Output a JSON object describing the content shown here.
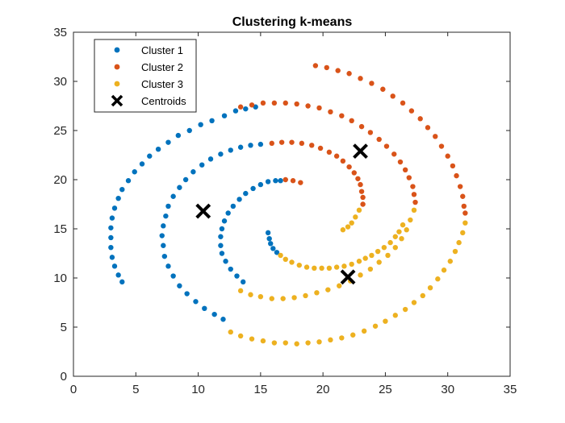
{
  "chart_data": {
    "type": "scatter",
    "title": "Clustering k-means",
    "xlabel": "",
    "ylabel": "",
    "xlim": [
      0,
      35
    ],
    "ylim": [
      0,
      35
    ],
    "xticks": [
      0,
      5,
      10,
      15,
      20,
      25,
      30,
      35
    ],
    "yticks": [
      0,
      5,
      10,
      15,
      20,
      25,
      30,
      35
    ],
    "grid": false,
    "legend_position": "top-left",
    "series": [
      {
        "name": "Cluster 1",
        "color": "#0072BD",
        "marker": "dot",
        "points": [
          [
            3.9,
            9.6
          ],
          [
            3.6,
            10.3
          ],
          [
            3.3,
            11.2
          ],
          [
            3.1,
            12.1
          ],
          [
            3.0,
            13.1
          ],
          [
            3.0,
            14.1
          ],
          [
            3.0,
            15.1
          ],
          [
            3.1,
            16.1
          ],
          [
            3.3,
            17.1
          ],
          [
            3.6,
            18.1
          ],
          [
            3.9,
            19.0
          ],
          [
            4.4,
            19.9
          ],
          [
            4.9,
            20.8
          ],
          [
            5.5,
            21.6
          ],
          [
            6.1,
            22.4
          ],
          [
            6.8,
            23.1
          ],
          [
            7.6,
            23.8
          ],
          [
            8.4,
            24.5
          ],
          [
            9.3,
            25.0
          ],
          [
            10.2,
            25.6
          ],
          [
            11.1,
            26.0
          ],
          [
            12.1,
            26.5
          ],
          [
            13.0,
            27.0
          ],
          [
            13.8,
            27.2
          ],
          [
            14.6,
            27.4
          ],
          [
            12.0,
            5.8
          ],
          [
            11.3,
            6.3
          ],
          [
            10.5,
            6.9
          ],
          [
            9.8,
            7.6
          ],
          [
            9.1,
            8.4
          ],
          [
            8.5,
            9.2
          ],
          [
            8.0,
            10.2
          ],
          [
            7.6,
            11.2
          ],
          [
            7.3,
            12.2
          ],
          [
            7.2,
            13.3
          ],
          [
            7.1,
            14.3
          ],
          [
            7.2,
            15.3
          ],
          [
            7.4,
            16.3
          ],
          [
            7.6,
            17.3
          ],
          [
            8.0,
            18.3
          ],
          [
            8.5,
            19.2
          ],
          [
            9.0,
            20.0
          ],
          [
            9.6,
            20.8
          ],
          [
            10.3,
            21.5
          ],
          [
            11.0,
            22.1
          ],
          [
            11.8,
            22.6
          ],
          [
            12.6,
            23.0
          ],
          [
            13.4,
            23.3
          ],
          [
            14.2,
            23.5
          ],
          [
            15.0,
            23.6
          ],
          [
            13.6,
            9.6
          ],
          [
            13.1,
            10.2
          ],
          [
            12.6,
            10.9
          ],
          [
            12.2,
            11.7
          ],
          [
            11.9,
            12.5
          ],
          [
            11.8,
            13.3
          ],
          [
            11.8,
            14.2
          ],
          [
            11.9,
            15.0
          ],
          [
            12.1,
            15.8
          ],
          [
            12.4,
            16.6
          ],
          [
            12.8,
            17.3
          ],
          [
            13.3,
            18.0
          ],
          [
            13.8,
            18.6
          ],
          [
            14.4,
            19.1
          ],
          [
            15.0,
            19.5
          ],
          [
            15.6,
            19.8
          ],
          [
            16.2,
            19.9
          ],
          [
            16.6,
            19.9
          ],
          [
            15.6,
            14.6
          ],
          [
            15.7,
            14.0
          ],
          [
            15.8,
            13.5
          ],
          [
            16.0,
            13.0
          ],
          [
            16.3,
            12.6
          ]
        ]
      },
      {
        "name": "Cluster 2",
        "color": "#D95319",
        "marker": "dot",
        "points": [
          [
            19.4,
            31.6
          ],
          [
            20.3,
            31.4
          ],
          [
            21.2,
            31.1
          ],
          [
            22.1,
            30.8
          ],
          [
            23.0,
            30.3
          ],
          [
            23.9,
            29.8
          ],
          [
            24.8,
            29.2
          ],
          [
            25.6,
            28.5
          ],
          [
            26.4,
            27.8
          ],
          [
            27.1,
            27.0
          ],
          [
            27.8,
            26.2
          ],
          [
            28.4,
            25.3
          ],
          [
            29.0,
            24.4
          ],
          [
            29.5,
            23.4
          ],
          [
            30.0,
            22.4
          ],
          [
            30.4,
            21.4
          ],
          [
            30.7,
            20.4
          ],
          [
            31.0,
            19.3
          ],
          [
            31.2,
            18.3
          ],
          [
            31.3,
            17.3
          ],
          [
            31.4,
            16.6
          ],
          [
            13.4,
            27.4
          ],
          [
            14.3,
            27.6
          ],
          [
            15.2,
            27.8
          ],
          [
            16.1,
            27.8
          ],
          [
            17.0,
            27.8
          ],
          [
            17.9,
            27.7
          ],
          [
            18.8,
            27.5
          ],
          [
            19.7,
            27.3
          ],
          [
            20.6,
            26.9
          ],
          [
            21.5,
            26.5
          ],
          [
            22.3,
            26.0
          ],
          [
            23.1,
            25.4
          ],
          [
            23.8,
            24.8
          ],
          [
            24.5,
            24.1
          ],
          [
            25.1,
            23.4
          ],
          [
            25.7,
            22.6
          ],
          [
            26.2,
            21.8
          ],
          [
            26.6,
            21.0
          ],
          [
            26.9,
            20.2
          ],
          [
            27.2,
            19.3
          ],
          [
            27.3,
            18.5
          ],
          [
            27.4,
            17.7
          ],
          [
            15.9,
            23.7
          ],
          [
            16.7,
            23.8
          ],
          [
            17.5,
            23.8
          ],
          [
            18.3,
            23.7
          ],
          [
            19.1,
            23.5
          ],
          [
            19.8,
            23.2
          ],
          [
            20.5,
            22.8
          ],
          [
            21.1,
            22.4
          ],
          [
            21.6,
            21.9
          ],
          [
            22.1,
            21.3
          ],
          [
            22.5,
            20.7
          ],
          [
            22.8,
            20.1
          ],
          [
            23.0,
            19.5
          ],
          [
            23.1,
            18.8
          ],
          [
            23.2,
            18.2
          ],
          [
            23.2,
            17.5
          ],
          [
            17.0,
            20.0
          ],
          [
            17.6,
            19.9
          ],
          [
            18.2,
            19.7
          ]
        ]
      },
      {
        "name": "Cluster 3",
        "color": "#EDB120",
        "marker": "dot",
        "points": [
          [
            31.4,
            15.6
          ],
          [
            31.2,
            14.6
          ],
          [
            30.9,
            13.6
          ],
          [
            30.6,
            12.7
          ],
          [
            30.2,
            11.7
          ],
          [
            29.7,
            10.8
          ],
          [
            29.2,
            9.9
          ],
          [
            28.6,
            9.0
          ],
          [
            28.0,
            8.2
          ],
          [
            27.3,
            7.5
          ],
          [
            26.6,
            6.8
          ],
          [
            25.8,
            6.2
          ],
          [
            25.0,
            5.6
          ],
          [
            24.2,
            5.1
          ],
          [
            23.3,
            4.6
          ],
          [
            22.4,
            4.2
          ],
          [
            21.5,
            3.9
          ],
          [
            20.6,
            3.7
          ],
          [
            19.7,
            3.5
          ],
          [
            18.8,
            3.4
          ],
          [
            17.9,
            3.3
          ],
          [
            17.0,
            3.4
          ],
          [
            16.1,
            3.4
          ],
          [
            15.2,
            3.6
          ],
          [
            14.3,
            3.8
          ],
          [
            13.4,
            4.1
          ],
          [
            12.6,
            4.5
          ],
          [
            27.3,
            16.9
          ],
          [
            27.0,
            15.9
          ],
          [
            26.7,
            14.9
          ],
          [
            26.3,
            14.0
          ],
          [
            25.8,
            13.1
          ],
          [
            25.2,
            12.3
          ],
          [
            24.5,
            11.6
          ],
          [
            23.8,
            10.9
          ],
          [
            23.0,
            10.3
          ],
          [
            22.2,
            9.7
          ],
          [
            21.3,
            9.2
          ],
          [
            20.4,
            8.8
          ],
          [
            19.5,
            8.5
          ],
          [
            18.6,
            8.2
          ],
          [
            17.7,
            8.0
          ],
          [
            16.8,
            7.9
          ],
          [
            15.9,
            7.9
          ],
          [
            15.0,
            8.1
          ],
          [
            14.2,
            8.3
          ],
          [
            13.4,
            8.7
          ],
          [
            22.9,
            16.9
          ],
          [
            22.6,
            16.2
          ],
          [
            22.3,
            15.6
          ],
          [
            22.0,
            15.2
          ],
          [
            21.6,
            14.9
          ],
          [
            16.6,
            12.3
          ],
          [
            17.0,
            11.9
          ],
          [
            17.5,
            11.6
          ],
          [
            18.1,
            11.3
          ],
          [
            18.7,
            11.1
          ],
          [
            19.3,
            11.0
          ],
          [
            19.9,
            11.0
          ],
          [
            20.5,
            11.0
          ],
          [
            21.1,
            11.1
          ],
          [
            21.7,
            11.2
          ],
          [
            22.3,
            11.4
          ],
          [
            22.9,
            11.7
          ],
          [
            23.4,
            12.0
          ],
          [
            23.9,
            12.3
          ],
          [
            24.4,
            12.7
          ],
          [
            24.9,
            13.1
          ],
          [
            25.4,
            13.6
          ],
          [
            25.8,
            14.2
          ],
          [
            26.1,
            14.7
          ],
          [
            26.4,
            15.4
          ]
        ]
      },
      {
        "name": "Centroids",
        "color": "#000000",
        "marker": "x",
        "points": [
          [
            10.4,
            16.8
          ],
          [
            23.0,
            22.9
          ],
          [
            22.0,
            10.1
          ]
        ]
      }
    ]
  }
}
